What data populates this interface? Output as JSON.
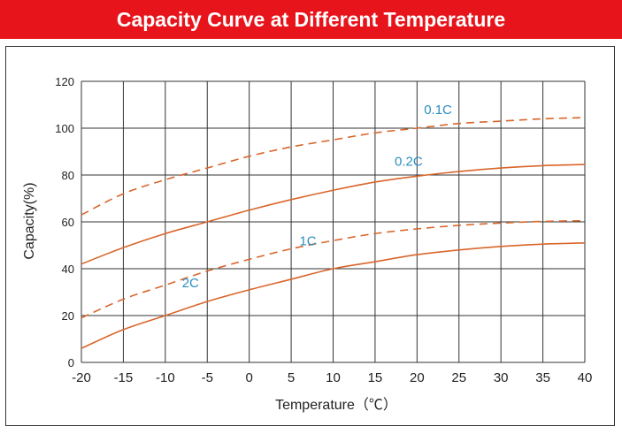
{
  "chart_data": {
    "type": "line",
    "title": "Capacity Curve at Different Temperature",
    "xlabel": "Temperature（℃）",
    "ylabel": "Capacity(%)",
    "xlim": [
      -20,
      40
    ],
    "ylim": [
      0,
      120
    ],
    "x_ticks": [
      "-20",
      "-15",
      "-10",
      "-5",
      "0",
      "5",
      "10",
      "15",
      "20",
      "25",
      "30",
      "35",
      "40"
    ],
    "y_ticks": [
      "0",
      "20",
      "40",
      "60",
      "80",
      "100",
      "120"
    ],
    "grid": true,
    "x": [
      -20,
      -15,
      -10,
      -5,
      0,
      5,
      10,
      15,
      20,
      25,
      30,
      35,
      40
    ],
    "series": [
      {
        "name": "0.1C",
        "style": "dashed",
        "color": "#d9662b",
        "values": [
          63,
          72,
          78,
          83,
          88,
          92,
          95,
          98,
          100,
          102,
          103,
          104,
          104.5
        ]
      },
      {
        "name": "0.2C",
        "style": "solid",
        "color": "#d9662b",
        "values": [
          42,
          49,
          55,
          60,
          65,
          69.5,
          73.5,
          77,
          79.5,
          81.5,
          83,
          84,
          84.5
        ]
      },
      {
        "name": "1C",
        "style": "dashed",
        "color": "#d9662b",
        "values": [
          19,
          27,
          33,
          39,
          44,
          48.5,
          52,
          55,
          57,
          58.5,
          59.5,
          60.2,
          60.5
        ]
      },
      {
        "name": "2C",
        "style": "solid",
        "color": "#d9662b",
        "values": [
          6,
          14,
          20,
          26,
          31,
          35.5,
          40,
          43,
          46,
          48,
          49.5,
          50.5,
          51
        ]
      }
    ],
    "series_label_positions": [
      [
        22.5,
        106
      ],
      [
        19,
        84
      ],
      [
        7,
        50
      ],
      [
        -7,
        32
      ]
    ]
  }
}
